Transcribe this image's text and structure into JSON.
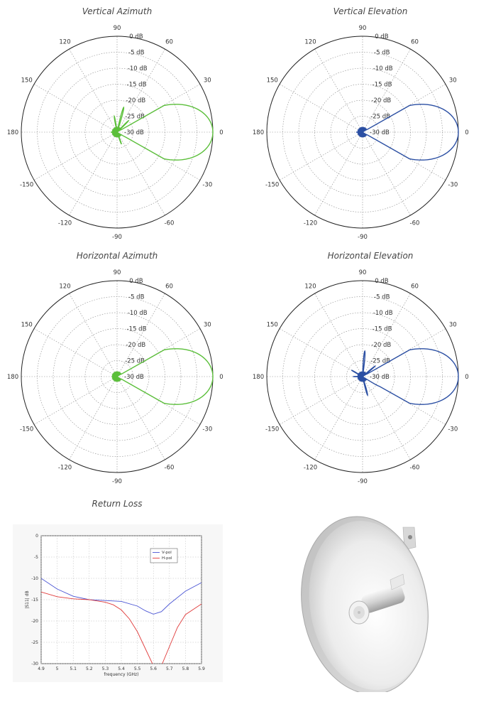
{
  "polar_common": {
    "ring_labels": [
      "0 dB",
      "-5 dB",
      "-10 dB",
      "-15 dB",
      "-20 dB",
      "-25 dB",
      "-30 dB"
    ],
    "angle_labels": [
      "0",
      "30",
      "60",
      "90",
      "120",
      "150",
      "180",
      "-150",
      "-120",
      "-90",
      "-60",
      "-30"
    ],
    "rmin_db": -30,
    "rmax_db": 0
  },
  "chart_data": [
    {
      "type": "polar",
      "title": "Vertical Azimuth",
      "color": "#5bbf3a",
      "series": [
        {
          "pattern": "main_lobe_with_side_lobes",
          "main_beam_deg": 0,
          "side_lobes_db": [
            {
              "angle": 20,
              "db": -24
            },
            {
              "angle": 45,
              "db": -25
            },
            {
              "angle": 75,
              "db": -22
            },
            {
              "angle": 100,
              "db": -25
            },
            {
              "angle": -70,
              "db": -26
            },
            {
              "angle": -30,
              "db": -27
            },
            {
              "angle": 180,
              "db": -28
            }
          ]
        }
      ]
    },
    {
      "type": "polar",
      "title": "Vertical Elevation",
      "color": "#2b4fa3",
      "series": [
        {
          "pattern": "main_lobe",
          "main_beam_deg": 0,
          "side_lobes_db": [
            {
              "angle": 180,
              "db": -28
            }
          ]
        }
      ]
    },
    {
      "type": "polar",
      "title": "Horizontal Azimuth",
      "color": "#5bbf3a",
      "series": [
        {
          "pattern": "main_lobe",
          "main_beam_deg": 0,
          "side_lobes_db": [
            {
              "angle": 25,
              "db": -26
            },
            {
              "angle": -20,
              "db": -27
            }
          ]
        }
      ]
    },
    {
      "type": "polar",
      "title": "Horizontal Elevation",
      "color": "#2b4fa3",
      "series": [
        {
          "pattern": "main_lobe_with_side_lobes",
          "main_beam_deg": 0,
          "side_lobes_db": [
            {
              "angle": 18,
              "db": -24
            },
            {
              "angle": 40,
              "db": -25
            },
            {
              "angle": 85,
              "db": -22
            },
            {
              "angle": -30,
              "db": -24
            },
            {
              "angle": -75,
              "db": -24
            },
            {
              "angle": 150,
              "db": -26
            },
            {
              "angle": 180,
              "db": -27
            }
          ]
        }
      ]
    },
    {
      "type": "line",
      "title": "Return Loss",
      "xlabel": "frequency (GHz)",
      "ylabel": "|S11| dB",
      "xlim": [
        4.9,
        5.9
      ],
      "ylim": [
        -30,
        0
      ],
      "xticks": [
        "4.9",
        "5",
        "5.1",
        "5.2",
        "5.3",
        "5.4",
        "5.5",
        "5.6",
        "5.7",
        "5.8",
        "5.9"
      ],
      "yticks": [
        "0",
        "-5",
        "-10",
        "-15",
        "-20",
        "-25",
        "-30"
      ],
      "legend": "top-right",
      "series": [
        {
          "name": "V-pol",
          "color": "#4a55d4",
          "x": [
            4.9,
            5.0,
            5.1,
            5.2,
            5.3,
            5.4,
            5.5,
            5.55,
            5.6,
            5.65,
            5.7,
            5.8,
            5.9
          ],
          "y": [
            -10,
            -12.5,
            -14.2,
            -15.0,
            -15.2,
            -15.4,
            -16.5,
            -17.6,
            -18.4,
            -17.8,
            -16.0,
            -13.0,
            -11.0
          ]
        },
        {
          "name": "H-pol",
          "color": "#e03a3a",
          "x": [
            4.9,
            5.0,
            5.1,
            5.2,
            5.3,
            5.35,
            5.4,
            5.45,
            5.5,
            5.55,
            5.6,
            5.65,
            5.7,
            5.75,
            5.8,
            5.9
          ],
          "y": [
            -13.2,
            -14.3,
            -14.8,
            -15.0,
            -15.6,
            -16.2,
            -17.4,
            -19.5,
            -22.5,
            -26.5,
            -30.5,
            -30.5,
            -26.0,
            -21.5,
            -18.5,
            -16.0
          ]
        }
      ]
    }
  ]
}
